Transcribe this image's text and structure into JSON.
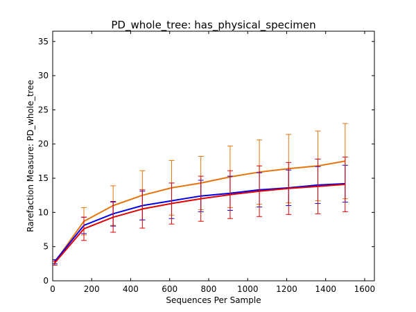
{
  "chart_data": {
    "type": "line",
    "title": "PD_whole_tree: has_physical_specimen",
    "xlabel": "Sequences Per Sample",
    "ylabel": "Rarefaction Measure: PD_whole_tree",
    "xlim": [
      0,
      1650
    ],
    "ylim": [
      0,
      36.5
    ],
    "xticks": [
      0,
      200,
      400,
      600,
      800,
      1000,
      1200,
      1400,
      1600
    ],
    "yticks": [
      0,
      5,
      10,
      15,
      20,
      25,
      30,
      35
    ],
    "grid": false,
    "legend": "none",
    "x": [
      10,
      160,
      310,
      460,
      610,
      760,
      910,
      1060,
      1210,
      1360,
      1500
    ],
    "series": [
      {
        "color": "#e8730a",
        "values": [
          2.7,
          8.7,
          11.0,
          12.5,
          13.6,
          14.3,
          15.2,
          15.9,
          16.4,
          16.8,
          17.5
        ],
        "errors": [
          0.4,
          2.0,
          2.9,
          3.6,
          4.0,
          3.9,
          4.5,
          4.7,
          5.0,
          5.1,
          5.5
        ]
      },
      {
        "color": "#0000e6",
        "values": [
          2.8,
          8.1,
          9.8,
          11.0,
          11.7,
          12.4,
          12.8,
          13.3,
          13.6,
          14.0,
          14.2
        ],
        "errors": [
          0.3,
          1.2,
          1.8,
          2.1,
          2.6,
          2.3,
          2.5,
          2.5,
          2.6,
          2.7,
          2.7
        ]
      },
      {
        "color": "#e00000",
        "values": [
          2.6,
          7.6,
          9.3,
          10.5,
          11.3,
          12.0,
          12.6,
          13.1,
          13.5,
          13.8,
          14.1
        ],
        "errors": [
          0.3,
          1.7,
          2.2,
          2.8,
          3.0,
          3.3,
          3.5,
          3.7,
          3.8,
          4.0,
          4.0
        ]
      }
    ]
  }
}
